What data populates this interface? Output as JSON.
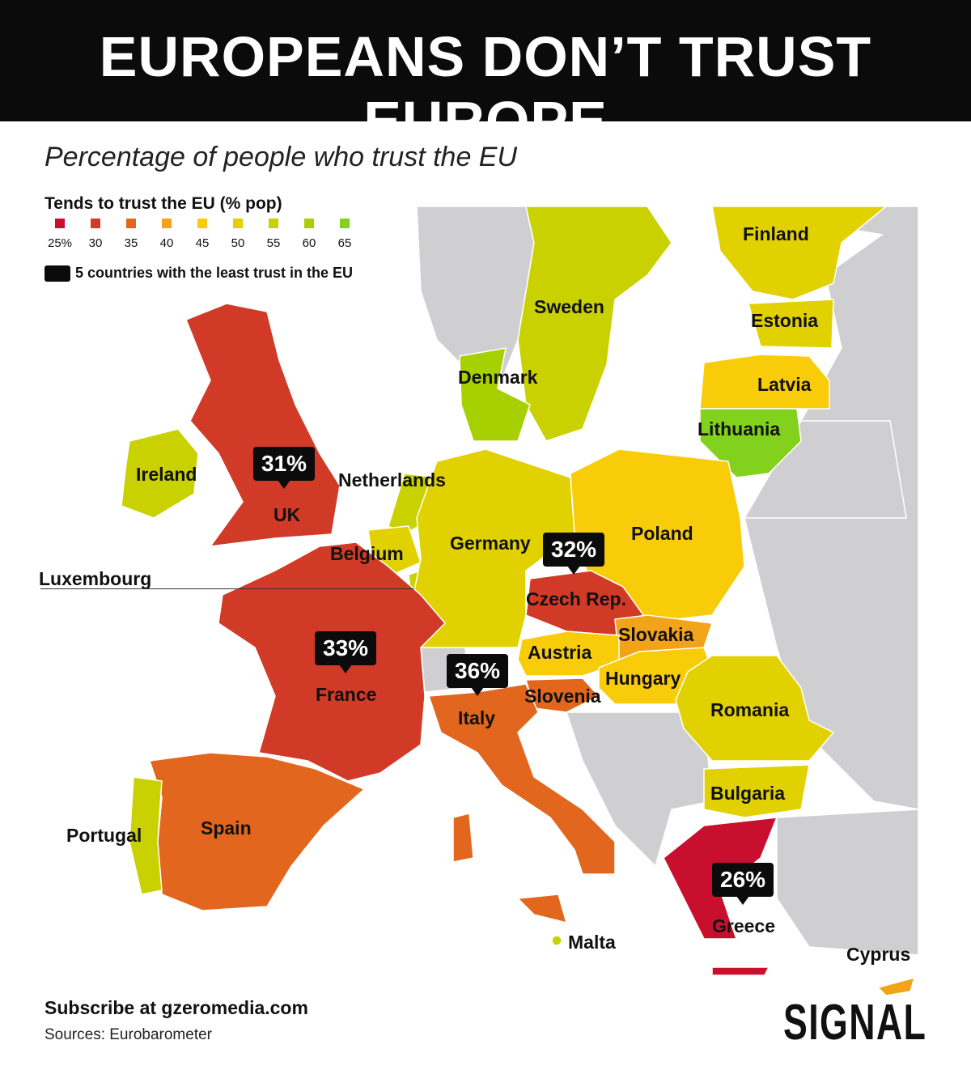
{
  "title": "EUROPEANS DON’T TRUST EUROPE",
  "subtitle": "Percentage of people who trust the EU",
  "legend": {
    "title": "Tends to trust the EU (% pop)",
    "ticks": [
      "25%",
      "30",
      "35",
      "40",
      "45",
      "50",
      "55",
      "60",
      "65"
    ],
    "colors": [
      "#c8102e",
      "#d13a26",
      "#e2661d",
      "#f2a31a",
      "#f9cc0a",
      "#e1d100",
      "#c9d100",
      "#a6d000",
      "#82d11c"
    ],
    "callout_note": "5 countries with the least trust in the EU"
  },
  "countries": [
    {
      "name": "Finland",
      "color": "#e1d100"
    },
    {
      "name": "Sweden",
      "color": "#c9d100"
    },
    {
      "name": "Estonia",
      "color": "#e1d100"
    },
    {
      "name": "Latvia",
      "color": "#f9cc0a"
    },
    {
      "name": "Lithuania",
      "color": "#82d11c"
    },
    {
      "name": "Denmark",
      "color": "#a6d000"
    },
    {
      "name": "Ireland",
      "color": "#c9d100"
    },
    {
      "name": "UK",
      "color": "#d13a26",
      "value": "31%"
    },
    {
      "name": "Netherlands",
      "color": "#c9d100"
    },
    {
      "name": "Belgium",
      "color": "#e1d100"
    },
    {
      "name": "Luxembourg",
      "color": "#c9d100"
    },
    {
      "name": "Germany",
      "color": "#e1d100"
    },
    {
      "name": "Poland",
      "color": "#f9cc0a"
    },
    {
      "name": "Czech Rep.",
      "color": "#d13a26",
      "value": "32%"
    },
    {
      "name": "Slovakia",
      "color": "#f2a31a"
    },
    {
      "name": "Austria",
      "color": "#f9cc0a"
    },
    {
      "name": "Hungary",
      "color": "#f9cc0a"
    },
    {
      "name": "France",
      "color": "#d13a26",
      "value": "33%"
    },
    {
      "name": "Italy",
      "color": "#e2661d",
      "value": "36%"
    },
    {
      "name": "Slovenia",
      "color": "#e2661d"
    },
    {
      "name": "Romania",
      "color": "#e1d100"
    },
    {
      "name": "Bulgaria",
      "color": "#e1d100"
    },
    {
      "name": "Spain",
      "color": "#e2661d"
    },
    {
      "name": "Portugal",
      "color": "#c9d100"
    },
    {
      "name": "Greece",
      "color": "#c8102e",
      "value": "26%"
    },
    {
      "name": "Malta",
      "color": "#c9d100"
    },
    {
      "name": "Cyprus",
      "color": "#f2a31a"
    }
  ],
  "non_eu_color": "#cfcfd1",
  "footer": {
    "subscribe": "Subscribe at gzeromedia.com",
    "sources": "Sources: Eurobarometer",
    "brand": "SIGNAL"
  }
}
